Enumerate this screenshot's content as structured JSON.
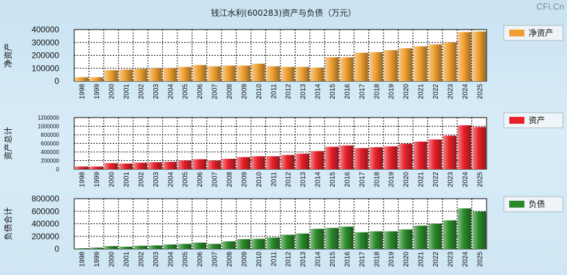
{
  "title": "钱江水利(600283)资产与负债（万元）",
  "watermark": "CFi.Cn",
  "chart_data": [
    {
      "type": "bar",
      "id": "net-assets",
      "ylabel": "净资产",
      "legend": "净资产",
      "legend_position": "right",
      "color": "#f0a030",
      "ylim": [
        0,
        400000
      ],
      "yticks": [
        0,
        100000,
        200000,
        300000,
        400000
      ],
      "categories": [
        "1998",
        "1999",
        "2000",
        "2001",
        "2002",
        "2003",
        "2004",
        "2005",
        "2006",
        "2007",
        "2008",
        "2009",
        "2010",
        "2011",
        "2012",
        "2013",
        "2014",
        "2015",
        "2016",
        "2017",
        "2018",
        "2019",
        "2020",
        "2021",
        "2022",
        "2023",
        "2024",
        "2025"
      ],
      "values": [
        30000,
        30000,
        85000,
        90000,
        95000,
        100000,
        100000,
        110000,
        125000,
        115000,
        120000,
        120000,
        135000,
        115000,
        110000,
        110000,
        105000,
        185000,
        185000,
        220000,
        225000,
        240000,
        255000,
        270000,
        285000,
        300000,
        380000,
        385000
      ]
    },
    {
      "type": "bar",
      "id": "total-assets",
      "ylabel": "资产总计",
      "legend": "资产",
      "legend_position": "right",
      "color": "#e8202a",
      "ylim": [
        0,
        1200000
      ],
      "yticks": [
        0,
        200000,
        400000,
        600000,
        800000,
        1000000,
        1200000
      ],
      "categories": [
        "1998",
        "1999",
        "2000",
        "2001",
        "2002",
        "2003",
        "2004",
        "2005",
        "2006",
        "2007",
        "2008",
        "2009",
        "2010",
        "2011",
        "2012",
        "2013",
        "2014",
        "2015",
        "2016",
        "2017",
        "2018",
        "2019",
        "2020",
        "2021",
        "2022",
        "2023",
        "2024",
        "2025"
      ],
      "values": [
        60000,
        60000,
        140000,
        130000,
        150000,
        160000,
        170000,
        200000,
        230000,
        200000,
        240000,
        280000,
        300000,
        300000,
        330000,
        360000,
        420000,
        520000,
        550000,
        490000,
        510000,
        530000,
        590000,
        640000,
        690000,
        780000,
        1020000,
        980000
      ]
    },
    {
      "type": "bar",
      "id": "total-liabilities",
      "ylabel": "负债合计",
      "legend": "负债",
      "legend_position": "right",
      "color": "#2a8a2a",
      "ylim": [
        0,
        800000
      ],
      "yticks": [
        0,
        200000,
        400000,
        600000,
        800000
      ],
      "categories": [
        "1998",
        "1999",
        "2000",
        "2001",
        "2002",
        "2003",
        "2004",
        "2005",
        "2006",
        "2007",
        "2008",
        "2009",
        "2010",
        "2011",
        "2012",
        "2013",
        "2014",
        "2015",
        "2016",
        "2017",
        "2018",
        "2019",
        "2020",
        "2021",
        "2022",
        "2023",
        "2024",
        "2025"
      ],
      "values": [
        10000,
        20000,
        45000,
        35000,
        50000,
        55000,
        70000,
        80000,
        100000,
        80000,
        120000,
        155000,
        160000,
        180000,
        225000,
        245000,
        320000,
        335000,
        355000,
        265000,
        280000,
        280000,
        310000,
        370000,
        400000,
        455000,
        645000,
        595000
      ]
    }
  ]
}
